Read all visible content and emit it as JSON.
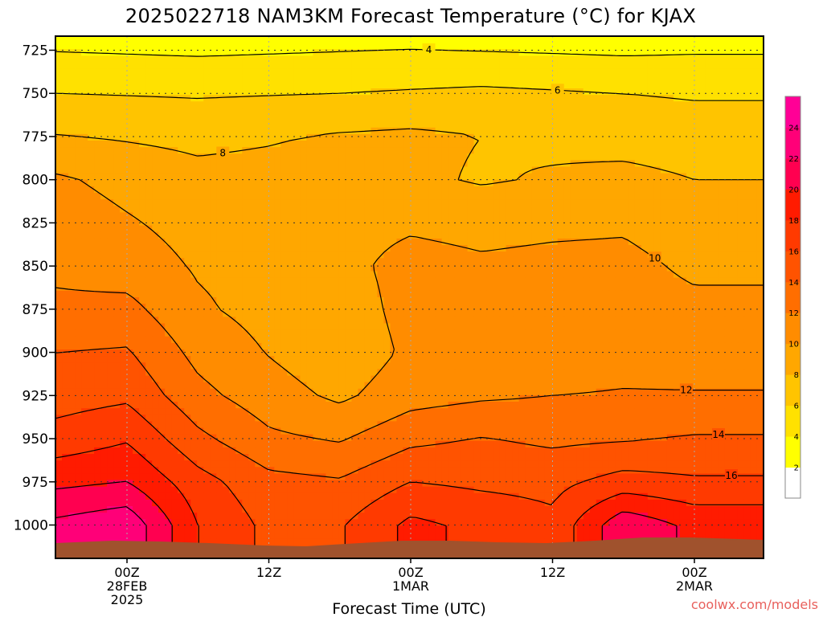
{
  "chart_data": {
    "type": "heatmap",
    "title": "2025022718 NAM3KM Forecast Temperature (°C) for KJAX",
    "xlabel": "Forecast Time (UTC)",
    "ylabel": "",
    "x_hours": [
      0,
      6,
      12,
      18,
      24,
      30,
      36,
      42,
      48,
      54
    ],
    "x_tick_labels": [
      {
        "hour": 6,
        "lines": [
          "00Z",
          "28FEB",
          "2025"
        ]
      },
      {
        "hour": 18,
        "lines": [
          "12Z"
        ]
      },
      {
        "hour": 30,
        "lines": [
          "00Z",
          "1MAR"
        ]
      },
      {
        "hour": 42,
        "lines": [
          "12Z"
        ]
      },
      {
        "hour": 54,
        "lines": [
          "00Z",
          "2MAR"
        ]
      }
    ],
    "y_levels_hpa": [
      725,
      750,
      775,
      800,
      825,
      850,
      875,
      900,
      925,
      950,
      975,
      1000
    ],
    "temperature_grid": [
      [
        3.9,
        3.8,
        3.7,
        3.8,
        3.9,
        4.0,
        3.9,
        3.8,
        3.7,
        3.8
      ],
      [
        6.0,
        5.9,
        5.8,
        5.9,
        6.0,
        6.2,
        6.4,
        6.2,
        6.0,
        5.8
      ],
      [
        8.1,
        7.8,
        7.5,
        7.8,
        8.2,
        8.4,
        8.0,
        7.6,
        7.2,
        7.0
      ],
      [
        10.3,
        9.4,
        8.6,
        8.7,
        9.0,
        8.4,
        7.8,
        8.2,
        8.6,
        8.0
      ],
      [
        11.1,
        10.2,
        9.3,
        9.3,
        9.3,
        9.7,
        9.4,
        9.6,
        9.7,
        8.8
      ],
      [
        11.6,
        11.0,
        9.8,
        9.4,
        9.4,
        10.7,
        10.3,
        10.5,
        10.6,
        9.6
      ],
      [
        12.4,
        12.6,
        10.3,
        9.3,
        8.9,
        10.7,
        10.5,
        10.7,
        10.9,
        10.5
      ],
      [
        14.0,
        14.2,
        11.4,
        9.9,
        8.6,
        10.4,
        10.6,
        11.2,
        11.5,
        11.3
      ],
      [
        15.1,
        15.6,
        12.6,
        10.9,
        9.6,
        11.2,
        11.7,
        12.0,
        12.1,
        12.1
      ],
      [
        16.8,
        17.8,
        14.5,
        12.4,
        11.8,
        13.5,
        14.1,
        13.6,
        13.8,
        14.2
      ],
      [
        19.5,
        20.0,
        16.8,
        14.6,
        14.2,
        16.0,
        15.6,
        15.4,
        16.8,
        16.3
      ],
      [
        22.5,
        23.5,
        18.0,
        15.5,
        15.8,
        18.5,
        17.5,
        16.5,
        21.5,
        19.5
      ]
    ],
    "contour_labels": [
      "4",
      "6",
      "8",
      "10",
      "12",
      "14",
      "16"
    ],
    "colorbar": {
      "levels": [
        2,
        4,
        6,
        8,
        10,
        12,
        14,
        16,
        18,
        20,
        22,
        24
      ],
      "colors": [
        "#ffffff",
        "#ffff00",
        "#ffe100",
        "#ffc400",
        "#ffa700",
        "#ff8c00",
        "#ff6e00",
        "#ff5300",
        "#ff3a00",
        "#ff1b00",
        "#ff0050",
        "#ff0078",
        "#ff0096"
      ]
    },
    "ground_color": "#a0522d",
    "grid": true,
    "legend": "right (colorbar)"
  },
  "credit": "coolwx.com/models"
}
